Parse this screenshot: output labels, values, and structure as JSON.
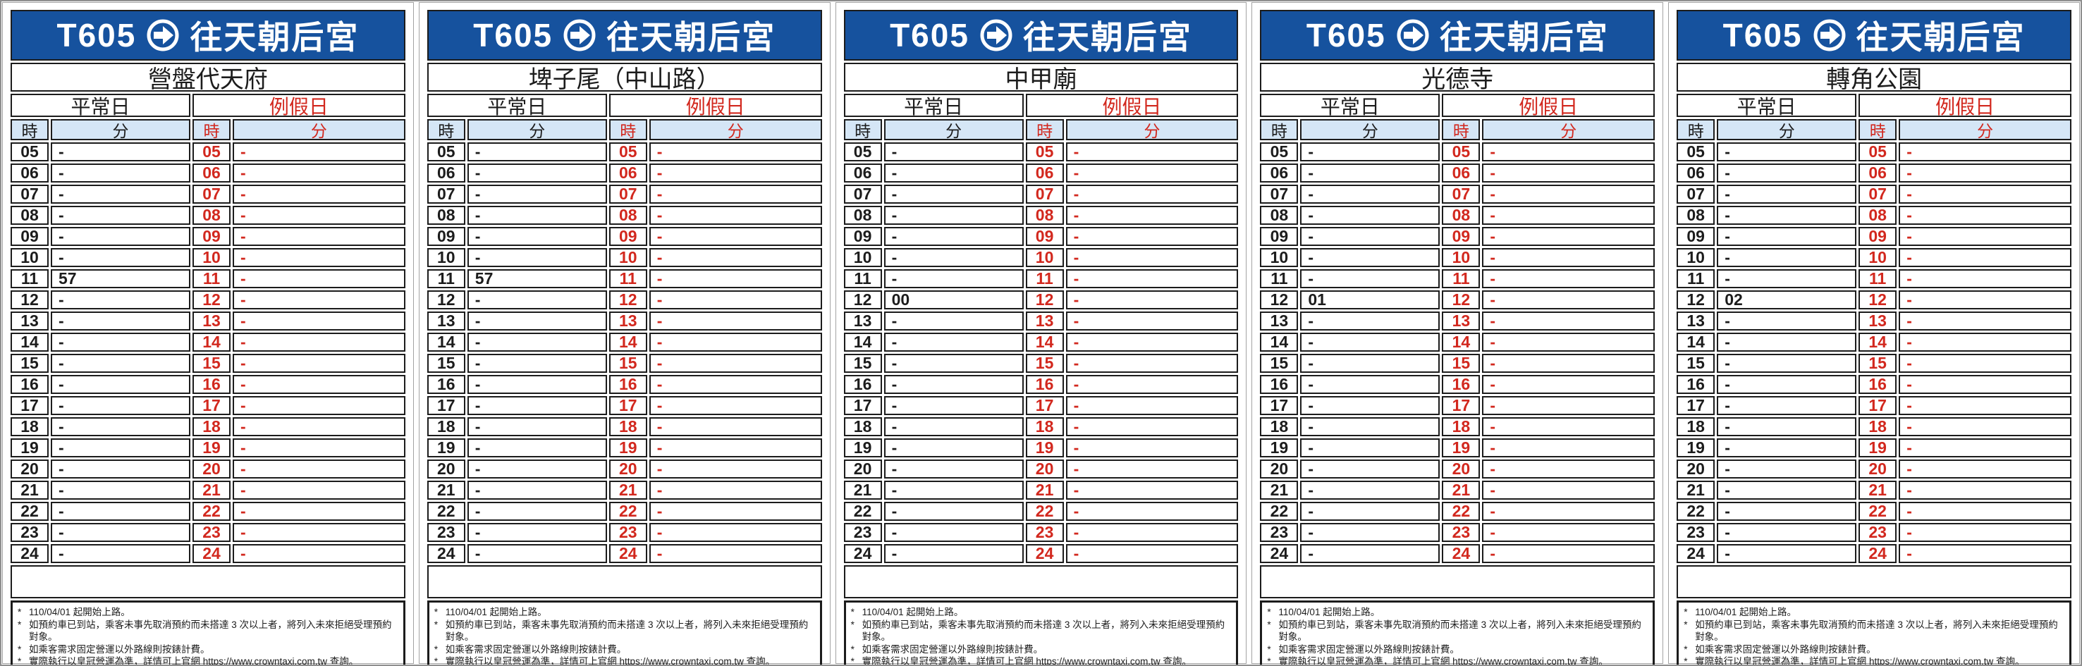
{
  "route": {
    "number": "T605",
    "arrow_icon": "arrow-right-circle-icon",
    "destination": "往天朝后宮"
  },
  "column_headers": {
    "weekday": "平常日",
    "holiday": "例假日",
    "hour": "時",
    "minute": "分"
  },
  "notes_marker": "*",
  "notes": [
    "110/04/01 起開始上路。",
    "如預約車已到站，乘客未事先取消預約而未搭達 3 次以上者，將列入未來拒絕受理預約對象。",
    "如乘客需求固定營運以外路線則按錶計費。",
    "實際執行以皇冠營運為準，詳情可上官網 https://www.crowntaxi.com.tw 查詢。"
  ],
  "colors": {
    "header_blue": "#16529E",
    "column_header_light_blue": "#D5E6F6",
    "holiday_red": "#D2281E",
    "text_black": "#1C1C1C"
  },
  "panels": [
    {
      "station": "營盤代天府",
      "rows": [
        [
          "05",
          "-",
          "05",
          "-"
        ],
        [
          "06",
          "-",
          "06",
          "-"
        ],
        [
          "07",
          "-",
          "07",
          "-"
        ],
        [
          "08",
          "-",
          "08",
          "-"
        ],
        [
          "09",
          "-",
          "09",
          "-"
        ],
        [
          "10",
          "-",
          "10",
          "-"
        ],
        [
          "11",
          "57",
          "11",
          "-"
        ],
        [
          "12",
          "-",
          "12",
          "-"
        ],
        [
          "13",
          "-",
          "13",
          "-"
        ],
        [
          "14",
          "-",
          "14",
          "-"
        ],
        [
          "15",
          "-",
          "15",
          "-"
        ],
        [
          "16",
          "-",
          "16",
          "-"
        ],
        [
          "17",
          "-",
          "17",
          "-"
        ],
        [
          "18",
          "-",
          "18",
          "-"
        ],
        [
          "19",
          "-",
          "19",
          "-"
        ],
        [
          "20",
          "-",
          "20",
          "-"
        ],
        [
          "21",
          "-",
          "21",
          "-"
        ],
        [
          "22",
          "-",
          "22",
          "-"
        ],
        [
          "23",
          "-",
          "23",
          "-"
        ],
        [
          "24",
          "-",
          "24",
          "-"
        ]
      ]
    },
    {
      "station": "埤子尾（中山路）",
      "rows": [
        [
          "05",
          "-",
          "05",
          "-"
        ],
        [
          "06",
          "-",
          "06",
          "-"
        ],
        [
          "07",
          "-",
          "07",
          "-"
        ],
        [
          "08",
          "-",
          "08",
          "-"
        ],
        [
          "09",
          "-",
          "09",
          "-"
        ],
        [
          "10",
          "-",
          "10",
          "-"
        ],
        [
          "11",
          "57",
          "11",
          "-"
        ],
        [
          "12",
          "-",
          "12",
          "-"
        ],
        [
          "13",
          "-",
          "13",
          "-"
        ],
        [
          "14",
          "-",
          "14",
          "-"
        ],
        [
          "15",
          "-",
          "15",
          "-"
        ],
        [
          "16",
          "-",
          "16",
          "-"
        ],
        [
          "17",
          "-",
          "17",
          "-"
        ],
        [
          "18",
          "-",
          "18",
          "-"
        ],
        [
          "19",
          "-",
          "19",
          "-"
        ],
        [
          "20",
          "-",
          "20",
          "-"
        ],
        [
          "21",
          "-",
          "21",
          "-"
        ],
        [
          "22",
          "-",
          "22",
          "-"
        ],
        [
          "23",
          "-",
          "23",
          "-"
        ],
        [
          "24",
          "-",
          "24",
          "-"
        ]
      ]
    },
    {
      "station": "中甲廟",
      "rows": [
        [
          "05",
          "-",
          "05",
          "-"
        ],
        [
          "06",
          "-",
          "06",
          "-"
        ],
        [
          "07",
          "-",
          "07",
          "-"
        ],
        [
          "08",
          "-",
          "08",
          "-"
        ],
        [
          "09",
          "-",
          "09",
          "-"
        ],
        [
          "10",
          "-",
          "10",
          "-"
        ],
        [
          "11",
          "-",
          "11",
          "-"
        ],
        [
          "12",
          "00",
          "12",
          "-"
        ],
        [
          "13",
          "-",
          "13",
          "-"
        ],
        [
          "14",
          "-",
          "14",
          "-"
        ],
        [
          "15",
          "-",
          "15",
          "-"
        ],
        [
          "16",
          "-",
          "16",
          "-"
        ],
        [
          "17",
          "-",
          "17",
          "-"
        ],
        [
          "18",
          "-",
          "18",
          "-"
        ],
        [
          "19",
          "-",
          "19",
          "-"
        ],
        [
          "20",
          "-",
          "20",
          "-"
        ],
        [
          "21",
          "-",
          "21",
          "-"
        ],
        [
          "22",
          "-",
          "22",
          "-"
        ],
        [
          "23",
          "-",
          "23",
          "-"
        ],
        [
          "24",
          "-",
          "24",
          "-"
        ]
      ]
    },
    {
      "station": "光德寺",
      "rows": [
        [
          "05",
          "-",
          "05",
          "-"
        ],
        [
          "06",
          "-",
          "06",
          "-"
        ],
        [
          "07",
          "-",
          "07",
          "-"
        ],
        [
          "08",
          "-",
          "08",
          "-"
        ],
        [
          "09",
          "-",
          "09",
          "-"
        ],
        [
          "10",
          "-",
          "10",
          "-"
        ],
        [
          "11",
          "-",
          "11",
          "-"
        ],
        [
          "12",
          "01",
          "12",
          "-"
        ],
        [
          "13",
          "-",
          "13",
          "-"
        ],
        [
          "14",
          "-",
          "14",
          "-"
        ],
        [
          "15",
          "-",
          "15",
          "-"
        ],
        [
          "16",
          "-",
          "16",
          "-"
        ],
        [
          "17",
          "-",
          "17",
          "-"
        ],
        [
          "18",
          "-",
          "18",
          "-"
        ],
        [
          "19",
          "-",
          "19",
          "-"
        ],
        [
          "20",
          "-",
          "20",
          "-"
        ],
        [
          "21",
          "-",
          "21",
          "-"
        ],
        [
          "22",
          "-",
          "22",
          "-"
        ],
        [
          "23",
          "-",
          "23",
          "-"
        ],
        [
          "24",
          "-",
          "24",
          "-"
        ]
      ]
    },
    {
      "station": "轉角公園",
      "rows": [
        [
          "05",
          "-",
          "05",
          "-"
        ],
        [
          "06",
          "-",
          "06",
          "-"
        ],
        [
          "07",
          "-",
          "07",
          "-"
        ],
        [
          "08",
          "-",
          "08",
          "-"
        ],
        [
          "09",
          "-",
          "09",
          "-"
        ],
        [
          "10",
          "-",
          "10",
          "-"
        ],
        [
          "11",
          "-",
          "11",
          "-"
        ],
        [
          "12",
          "02",
          "12",
          "-"
        ],
        [
          "13",
          "-",
          "13",
          "-"
        ],
        [
          "14",
          "-",
          "14",
          "-"
        ],
        [
          "15",
          "-",
          "15",
          "-"
        ],
        [
          "16",
          "-",
          "16",
          "-"
        ],
        [
          "17",
          "-",
          "17",
          "-"
        ],
        [
          "18",
          "-",
          "18",
          "-"
        ],
        [
          "19",
          "-",
          "19",
          "-"
        ],
        [
          "20",
          "-",
          "20",
          "-"
        ],
        [
          "21",
          "-",
          "21",
          "-"
        ],
        [
          "22",
          "-",
          "22",
          "-"
        ],
        [
          "23",
          "-",
          "23",
          "-"
        ],
        [
          "24",
          "-",
          "24",
          "-"
        ]
      ]
    }
  ]
}
